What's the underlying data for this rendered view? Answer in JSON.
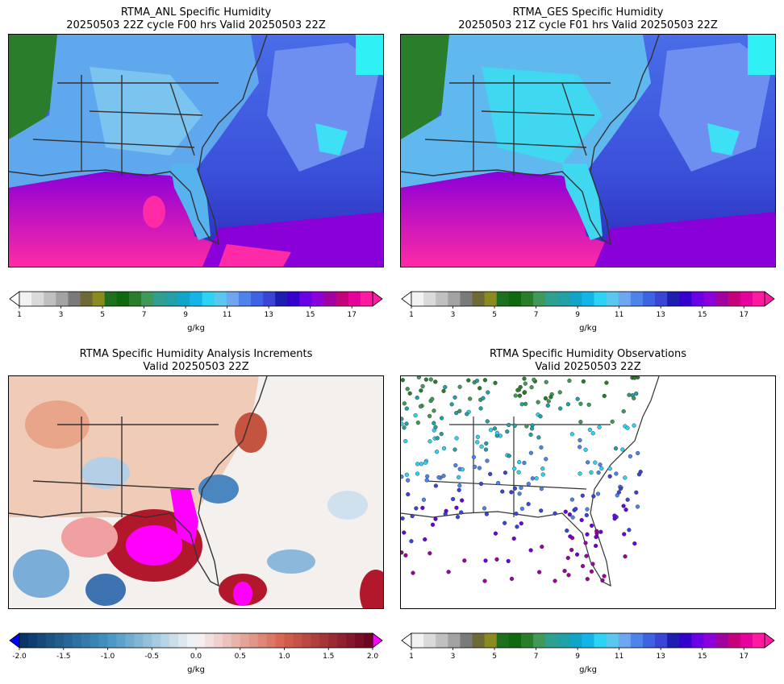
{
  "panels": [
    {
      "title_line1": "RTMA_ANL Specific Humidity",
      "title_line2": "20250503 22Z cycle F00 hrs Valid 20250503 22Z"
    },
    {
      "title_line1": "RTMA_GES Specific Humidity",
      "title_line2": "20250503 21Z cycle F01 hrs Valid 20250503 22Z"
    },
    {
      "title_line1": "RTMA Specific Humidity Analysis Increments",
      "title_line2": "Valid 20250503 22Z"
    },
    {
      "title_line1": "RTMA Specific Humidity Observations",
      "title_line2": "Valid 20250503 22Z"
    }
  ],
  "colorbars": {
    "humidity": {
      "unit": "g/kg",
      "ticks": [
        "1",
        "3",
        "5",
        "7",
        "9",
        "11",
        "13",
        "15",
        "17"
      ],
      "range": [
        1,
        18
      ],
      "colors": [
        "#f2f2f2",
        "#dadada",
        "#c0c0c0",
        "#a3a3a3",
        "#7a7a7a",
        "#6e6a38",
        "#8a8a1e",
        "#1e6f1e",
        "#0d6b0d",
        "#2a7d2a",
        "#3f9a5a",
        "#2f9f8f",
        "#21a0a6",
        "#0fa5c9",
        "#12b5e6",
        "#2dd3f2",
        "#59c7ee",
        "#6fa6ef",
        "#4e84ea",
        "#3d62e2",
        "#3a45d6",
        "#1d1db0",
        "#3300cc",
        "#6a00e6",
        "#8c00d9",
        "#a0009f",
        "#c4007a",
        "#e6009c",
        "#ff1aa0"
      ]
    },
    "increments": {
      "unit": "g/kg",
      "ticks": [
        "-2.0",
        "-1.5",
        "-1.0",
        "-0.5",
        "0.0",
        "0.5",
        "1.0",
        "1.5",
        "2.0"
      ],
      "range": [
        -2.0,
        2.0
      ],
      "low_extend": "#0000ff",
      "high_extend": "#ff00ff"
    }
  }
}
